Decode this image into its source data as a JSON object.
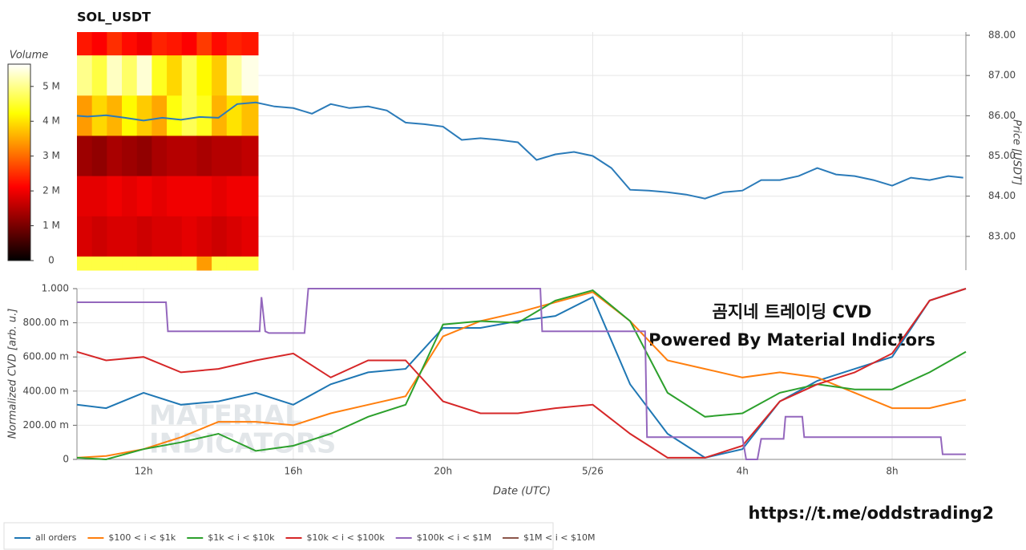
{
  "chart_data": [
    {
      "type": "line",
      "title": "SOL_USDT",
      "y_label": "Price [USDT]",
      "color": "#2b7bb9",
      "grid": true,
      "x": [
        10.22,
        10.5,
        11,
        11.5,
        12,
        12.5,
        13,
        13.5,
        14,
        14.5,
        15,
        15.5,
        16,
        16.5,
        17,
        17.5,
        18,
        18.5,
        19,
        19.5,
        20,
        20.5,
        21,
        21.5,
        22,
        22.5,
        23,
        23.5,
        24,
        24.5,
        25,
        25.5,
        26,
        26.5,
        27,
        27.5,
        28,
        28.5,
        29,
        29.5,
        30,
        30.5,
        31,
        31.5,
        32,
        32.5,
        33,
        33.5,
        33.9
      ],
      "values": [
        86.0,
        85.98,
        86.01,
        85.95,
        85.88,
        85.95,
        85.9,
        85.97,
        85.95,
        86.29,
        86.33,
        86.23,
        86.19,
        86.05,
        86.29,
        86.19,
        86.23,
        86.13,
        85.83,
        85.79,
        85.73,
        85.4,
        85.44,
        85.4,
        85.34,
        84.9,
        85.04,
        85.1,
        85.0,
        84.7,
        84.16,
        84.14,
        84.1,
        84.04,
        83.94,
        84.1,
        84.14,
        84.4,
        84.4,
        84.5,
        84.7,
        84.54,
        84.5,
        84.4,
        84.26,
        84.46,
        84.4,
        84.5,
        84.46
      ],
      "xlim": [
        10.22,
        33.97
      ],
      "xticks": [
        12,
        16,
        20,
        24,
        28,
        32
      ],
      "ylim": [
        82.16,
        88.08
      ],
      "yticks": [
        {
          "value": 83,
          "label": "83.00"
        },
        {
          "value": 84,
          "label": "84.00"
        },
        {
          "value": 85,
          "label": "85.00"
        },
        {
          "value": 86,
          "label": "86.00"
        },
        {
          "value": 87,
          "label": "87.00"
        },
        {
          "value": 88,
          "label": "88.00"
        }
      ],
      "heatmap": {
        "x_edges": [
          10.22,
          10.62,
          11.02,
          11.42,
          11.82,
          12.22,
          12.62,
          13.02,
          13.42,
          13.82,
          14.22,
          14.62,
          15.06
        ],
        "y_edges": [
          88.08,
          87.5,
          86.5,
          85.5,
          84.5,
          83.5,
          82.5,
          82.16
        ],
        "values": [
          [
            2300000,
            2100000,
            2500000,
            2200000,
            2000000,
            2400000,
            2300000,
            2100000,
            2600000,
            2200000,
            2400000,
            2300000
          ],
          [
            5000000,
            4600000,
            5300000,
            4800000,
            5400000,
            4400000,
            3900000,
            4700000,
            4200000,
            3800000,
            5100000,
            5500000
          ],
          [
            3400000,
            3900000,
            3600000,
            4200000,
            3800000,
            3500000,
            4300000,
            4700000,
            4400000,
            3600000,
            4000000,
            3700000
          ],
          [
            1300000,
            1200000,
            1400000,
            1300000,
            1200000,
            1400000,
            1500000,
            1500000,
            1400000,
            1500000,
            1500000,
            1600000
          ],
          [
            1900000,
            1900000,
            2000000,
            1900000,
            2000000,
            1900000,
            2000000,
            2000000,
            2000000,
            1900000,
            2000000,
            2000000
          ],
          [
            1800000,
            1700000,
            1800000,
            1800000,
            1700000,
            1800000,
            1800000,
            1900000,
            1800000,
            1700000,
            1800000,
            1900000
          ],
          [
            4600000,
            4600000,
            4600000,
            4600000,
            4600000,
            4600000,
            4600000,
            4600000,
            3400000,
            4600000,
            4600000,
            4600000
          ]
        ],
        "colorbar": {
          "title": "Volume",
          "lim": [
            0,
            5640000
          ],
          "ticks": [
            0,
            {
              "value": 1000000,
              "label": "1 M"
            },
            {
              "value": 2000000,
              "label": "2 M"
            },
            {
              "value": 3000000,
              "label": "3 M"
            },
            {
              "value": 4000000,
              "label": "4 M"
            },
            {
              "value": 5000000,
              "label": "5 M"
            }
          ]
        }
      }
    },
    {
      "type": "line",
      "y_label": "Normalized CVD [arb. u.]",
      "x_label": "Date (UTC)",
      "grid": true,
      "x": [
        10.22,
        11,
        12,
        13,
        14,
        15,
        16,
        17,
        18,
        19,
        20,
        21,
        22,
        23,
        24,
        25,
        26,
        27,
        28,
        29,
        30,
        31,
        32,
        33,
        33.97
      ],
      "xlim": [
        10.22,
        33.97
      ],
      "xticks": [
        {
          "value": 12,
          "label": "12h"
        },
        {
          "value": 16,
          "label": "16h"
        },
        {
          "value": 20,
          "label": "20h"
        },
        {
          "value": 24,
          "label": "5/26"
        },
        {
          "value": 28,
          "label": "4h"
        },
        {
          "value": 32,
          "label": "8h"
        }
      ],
      "ylim": [
        0,
        1
      ],
      "yticks": [
        0,
        {
          "value": 0.2,
          "label": "200.00 m"
        },
        {
          "value": 0.4,
          "label": "400.00 m"
        },
        {
          "value": 0.6,
          "label": "600.00 m"
        },
        {
          "value": 0.8,
          "label": "800.00 m"
        },
        {
          "value": 1,
          "label": "1.000"
        }
      ],
      "series": [
        {
          "name": "all orders",
          "color": "#1f77b4",
          "values": [
            0.32,
            0.3,
            0.39,
            0.32,
            0.34,
            0.39,
            0.32,
            0.44,
            0.51,
            0.53,
            0.77,
            0.77,
            0.81,
            0.84,
            0.95,
            0.44,
            0.15,
            0.01,
            0.06,
            0.34,
            0.46,
            0.53,
            0.6,
            0.93,
            1.0
          ]
        },
        {
          "name": "$100 < i < $1k",
          "color": "#ff7f0e",
          "values": [
            0.01,
            0.02,
            0.06,
            0.13,
            0.22,
            0.22,
            0.2,
            0.27,
            0.32,
            0.37,
            0.72,
            0.81,
            0.86,
            0.92,
            0.98,
            0.81,
            0.58,
            0.53,
            0.48,
            0.51,
            0.48,
            0.39,
            0.3,
            0.3,
            0.35
          ]
        },
        {
          "name": "$1k < i < $10k",
          "color": "#2ca02c",
          "values": [
            0.01,
            0,
            0.06,
            0.1,
            0.15,
            0.05,
            0.08,
            0.15,
            0.25,
            0.32,
            0.79,
            0.81,
            0.8,
            0.93,
            0.99,
            0.81,
            0.39,
            0.25,
            0.27,
            0.39,
            0.44,
            0.41,
            0.41,
            0.51,
            0.63
          ]
        },
        {
          "name": "$10k < i < $100k",
          "color": "#d62728",
          "values": [
            0.63,
            0.58,
            0.6,
            0.51,
            0.53,
            0.58,
            0.62,
            0.48,
            0.58,
            0.58,
            0.34,
            0.27,
            0.27,
            0.3,
            0.32,
            0.15,
            0.01,
            0.01,
            0.08,
            0.34,
            0.44,
            0.51,
            0.62,
            0.93,
            1.0
          ]
        },
        {
          "name": "$100k < i < $1M",
          "color": "#9467bd",
          "x": [
            10.22,
            12.6,
            12.65,
            15.1,
            15.15,
            15.25,
            15.35,
            16.3,
            16.4,
            22.6,
            22.65,
            25.4,
            25.45,
            28.0,
            28.1,
            28.4,
            28.5,
            29.1,
            29.15,
            29.6,
            29.65,
            33.3,
            33.35,
            33.97
          ],
          "values": [
            0.92,
            0.92,
            0.75,
            0.75,
            0.95,
            0.75,
            0.74,
            0.74,
            1.0,
            1.0,
            0.75,
            0.75,
            0.13,
            0.13,
            0,
            0,
            0.12,
            0.12,
            0.25,
            0.25,
            0.13,
            0.13,
            0.03,
            0.03
          ]
        },
        {
          "name": "$1M < i < $10M",
          "color": "#8c564b"
        }
      ]
    }
  ],
  "annotations": [
    "곰지네 트레이딩 CVD",
    "Powered By Material Indictors"
  ],
  "link": "https://t.me/oddstrading2",
  "watermark": [
    "MATERIAL",
    "INDICATORS"
  ]
}
